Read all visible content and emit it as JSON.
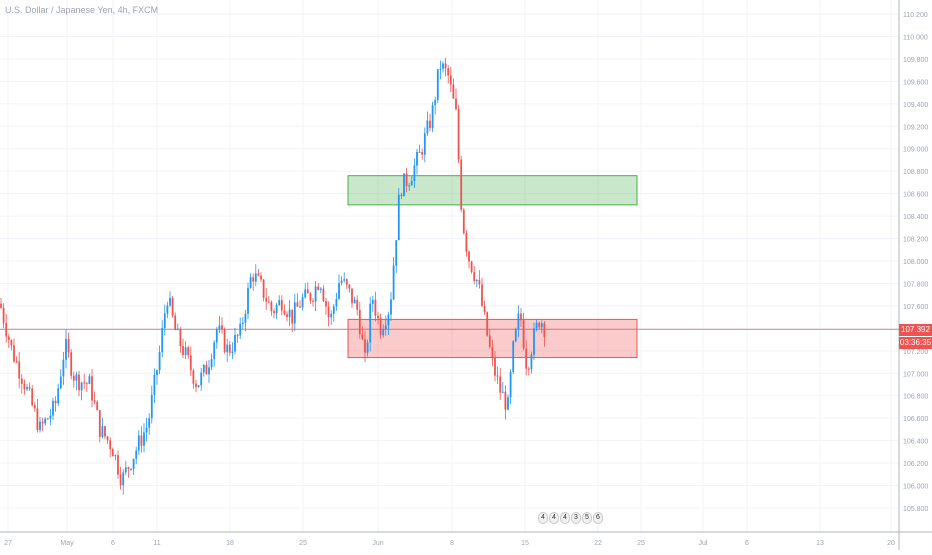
{
  "title": "U.S. Dollar / Japanese Yen, 4h, FXCM",
  "last_price_label": "107.392",
  "countdown_label": "03:36:35",
  "colors": {
    "up": "#2196f3",
    "down": "#ef5350",
    "grid": "#f0f3fa",
    "axis": "#b2b5be",
    "support_zone": "#ef5350",
    "resistance_zone": "#4caf50"
  },
  "event_markers": [
    "4",
    "4",
    "4",
    "3",
    "5",
    "6"
  ],
  "chart_data": {
    "type": "candlestick",
    "title": "U.S. Dollar / Japanese Yen, 4h, FXCM",
    "y_axis_ticks": [
      "105.800",
      "106.000",
      "106.200",
      "106.400",
      "106.600",
      "106.800",
      "107.000",
      "107.200",
      "107.400",
      "107.600",
      "107.800",
      "108.000",
      "108.200",
      "108.400",
      "108.600",
      "108.800",
      "109.000",
      "109.200",
      "109.400",
      "109.600",
      "109.800",
      "110.000",
      "110.200"
    ],
    "x_axis_ticks": [
      "27",
      "May",
      "6",
      "11",
      "18",
      "25",
      "Jun",
      "8",
      "15",
      "22",
      "25",
      "Jul",
      "6",
      "13",
      "20"
    ],
    "ylim": [
      105.65,
      110.25
    ],
    "last_price": 107.392,
    "zones": [
      {
        "type": "resistance",
        "low": 108.5,
        "high": 108.76
      },
      {
        "type": "support",
        "low": 107.14,
        "high": 107.48
      }
    ],
    "path": [
      [
        0,
        107.62
      ],
      [
        12,
        107.2
      ],
      [
        25,
        106.9
      ],
      [
        40,
        106.5
      ],
      [
        55,
        106.7
      ],
      [
        65,
        107.25
      ],
      [
        75,
        106.95
      ],
      [
        90,
        106.9
      ],
      [
        100,
        106.5
      ],
      [
        112,
        106.35
      ],
      [
        122,
        106.05
      ],
      [
        135,
        106.3
      ],
      [
        148,
        106.55
      ],
      [
        160,
        107.2
      ],
      [
        167,
        107.7
      ],
      [
        176,
        107.35
      ],
      [
        186,
        107.15
      ],
      [
        197,
        106.9
      ],
      [
        207,
        107.05
      ],
      [
        217,
        107.4
      ],
      [
        228,
        107.2
      ],
      [
        240,
        107.35
      ],
      [
        252,
        107.9
      ],
      [
        262,
        107.75
      ],
      [
        272,
        107.55
      ],
      [
        282,
        107.65
      ],
      [
        292,
        107.5
      ],
      [
        302,
        107.65
      ],
      [
        312,
        107.7
      ],
      [
        320,
        107.85
      ],
      [
        330,
        107.45
      ],
      [
        340,
        107.85
      ],
      [
        350,
        107.7
      ],
      [
        358,
        107.55
      ],
      [
        365,
        107.1
      ],
      [
        372,
        107.7
      ],
      [
        380,
        107.4
      ],
      [
        390,
        107.6
      ],
      [
        400,
        108.65
      ],
      [
        410,
        108.75
      ],
      [
        420,
        108.95
      ],
      [
        432,
        109.3
      ],
      [
        440,
        109.75
      ],
      [
        448,
        109.65
      ],
      [
        456,
        109.3
      ],
      [
        462,
        108.4
      ],
      [
        468,
        108.05
      ],
      [
        478,
        107.8
      ],
      [
        485,
        107.45
      ],
      [
        492,
        107.1
      ],
      [
        500,
        106.85
      ],
      [
        508,
        106.7
      ],
      [
        513,
        107.2
      ],
      [
        520,
        107.55
      ],
      [
        527,
        107.05
      ],
      [
        533,
        107.3
      ],
      [
        540,
        107.5
      ],
      [
        545,
        107.4
      ]
    ]
  }
}
